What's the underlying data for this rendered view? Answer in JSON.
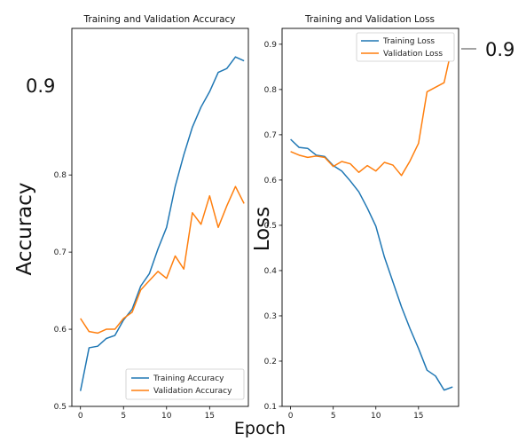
{
  "figure": {
    "shared_xlabel": "Epoch",
    "annotation_left": "0.9",
    "annotation_right": "0.9",
    "colors": {
      "series1": "#1f77b4",
      "series2": "#ff7f0e"
    }
  },
  "chart_data": [
    {
      "type": "line",
      "title": "Training and Validation Accuracy",
      "xlabel": "",
      "ylabel": "Accuracy",
      "xlim": [
        -1,
        19.5
      ],
      "ylim": [
        0.5,
        0.99
      ],
      "xticks": [
        0,
        5,
        10,
        15
      ],
      "yticks": [
        0.5,
        0.6,
        0.7,
        0.8
      ],
      "legend_position": "lower right",
      "x": [
        0,
        1,
        2,
        3,
        4,
        5,
        6,
        7,
        8,
        9,
        10,
        11,
        12,
        13,
        14,
        15,
        16,
        17,
        18,
        19
      ],
      "series": [
        {
          "name": "Training Accuracy",
          "values": [
            0.52,
            0.576,
            0.578,
            0.588,
            0.592,
            0.612,
            0.626,
            0.656,
            0.672,
            0.704,
            0.732,
            0.785,
            0.826,
            0.862,
            0.888,
            0.908,
            0.933,
            0.938,
            0.953,
            0.948
          ]
        },
        {
          "name": "Validation Accuracy",
          "values": [
            0.614,
            0.597,
            0.595,
            0.6,
            0.6,
            0.614,
            0.622,
            0.651,
            0.663,
            0.675,
            0.666,
            0.695,
            0.678,
            0.751,
            0.736,
            0.773,
            0.732,
            0.76,
            0.785,
            0.763
          ]
        }
      ]
    },
    {
      "type": "line",
      "title": "Training and Validation Loss",
      "xlabel": "",
      "ylabel": "Loss",
      "xlim": [
        -1,
        19.7
      ],
      "ylim": [
        0.1,
        0.935
      ],
      "xticks": [
        0,
        5,
        10,
        15
      ],
      "yticks": [
        0.1,
        0.2,
        0.3,
        0.4,
        0.5,
        0.6,
        0.7,
        0.8,
        0.9
      ],
      "legend_position": "upper right",
      "x": [
        0,
        1,
        2,
        3,
        4,
        5,
        6,
        7,
        8,
        9,
        10,
        11,
        12,
        13,
        14,
        15,
        16,
        17,
        18,
        19
      ],
      "series": [
        {
          "name": "Training Loss",
          "values": [
            0.69,
            0.672,
            0.67,
            0.655,
            0.652,
            0.632,
            0.62,
            0.598,
            0.574,
            0.538,
            0.498,
            0.43,
            0.375,
            0.32,
            0.272,
            0.228,
            0.18,
            0.167,
            0.136,
            0.143
          ]
        },
        {
          "name": "Validation Loss",
          "values": [
            0.663,
            0.655,
            0.65,
            0.653,
            0.65,
            0.63,
            0.641,
            0.636,
            0.617,
            0.632,
            0.62,
            0.639,
            0.633,
            0.61,
            0.642,
            0.681,
            0.795,
            0.805,
            0.815,
            0.9
          ]
        }
      ]
    }
  ]
}
